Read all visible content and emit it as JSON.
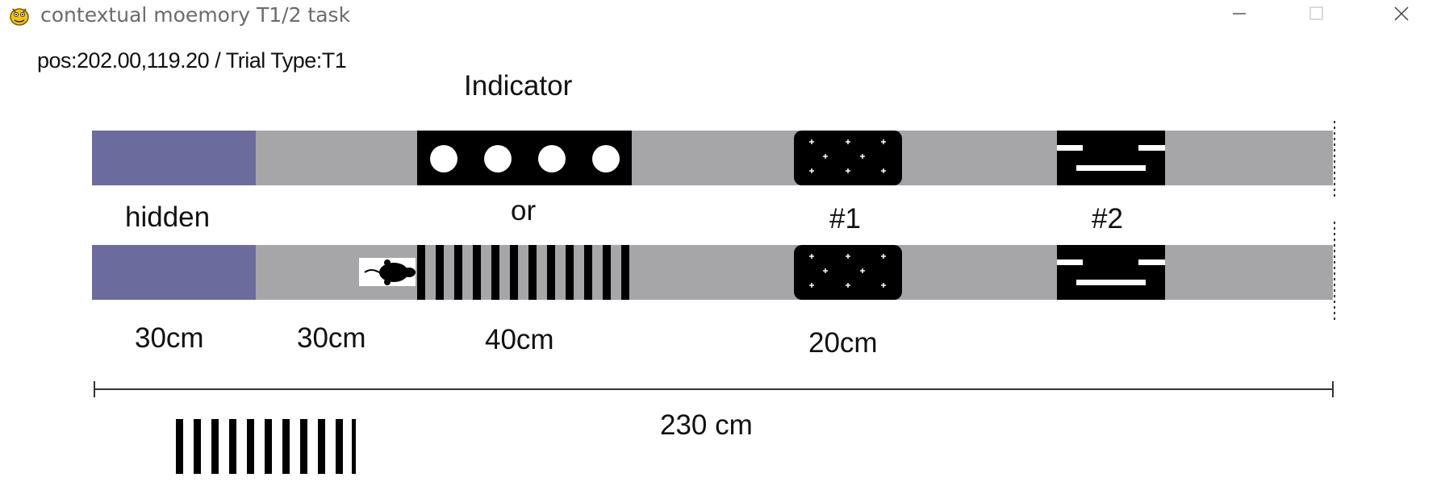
{
  "window": {
    "title": "contextual moemory T1/2 task",
    "app_icon": "pygame-snake-icon",
    "controls": [
      "minimize-icon",
      "maximize-icon",
      "close-icon"
    ]
  },
  "status": {
    "text": "pos:202.00,119.20  /  Trial Type:T1",
    "position_readout": "202.00,119.20",
    "trial_type": "T1"
  },
  "labels": {
    "indicator": "Indicator",
    "hidden": "hidden",
    "or": "or",
    "cue1": "#1",
    "cue2": "#2",
    "seg_hidden": "30cm",
    "seg_start": "30cm",
    "seg_indicator": "40cm",
    "seg_cue": "20cm",
    "total_length": "230 cm"
  },
  "colors": {
    "hidden_zone": "#6b6b9e",
    "track": "#a6a6a9",
    "pattern_black": "#000000",
    "pattern_white": "#ffffff"
  },
  "scene_icons": {
    "indicator_top": "dots-pattern-icon",
    "indicator_bottom": "vertical-stripes-pattern-icon",
    "cue1": "plus-grid-pattern-icon",
    "cue2": "horizontal-bars-pattern-icon",
    "animal": "mouse-icon",
    "current_pattern": "vertical-stripes-pattern-icon"
  }
}
